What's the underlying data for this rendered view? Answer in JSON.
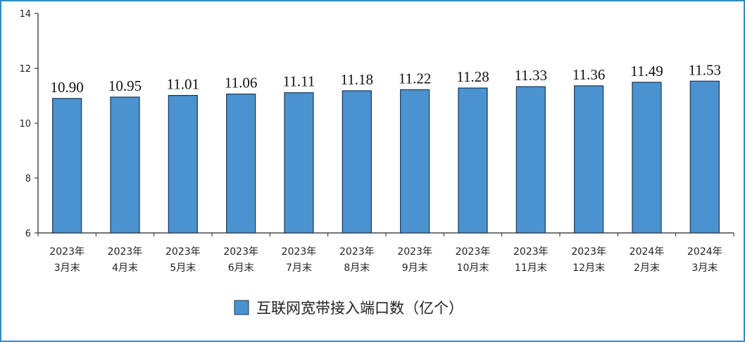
{
  "chart_data": {
    "type": "bar",
    "categories": [
      [
        "2023年",
        "3月末"
      ],
      [
        "2023年",
        "4月末"
      ],
      [
        "2023年",
        "5月末"
      ],
      [
        "2023年",
        "6月末"
      ],
      [
        "2023年",
        "7月末"
      ],
      [
        "2023年",
        "8月末"
      ],
      [
        "2023年",
        "9月末"
      ],
      [
        "2023年",
        "10月末"
      ],
      [
        "2023年",
        "11月末"
      ],
      [
        "2023年",
        "12月末"
      ],
      [
        "2024年",
        "2月末"
      ],
      [
        "2024年",
        "3月末"
      ]
    ],
    "series": [
      {
        "name": "互联网宽带接入端口数（亿个）",
        "values": [
          10.9,
          10.95,
          11.01,
          11.06,
          11.11,
          11.18,
          11.22,
          11.28,
          11.33,
          11.36,
          11.49,
          11.53
        ],
        "value_labels": [
          "10.90",
          "10.95",
          "11.01",
          "11.06",
          "11.11",
          "11.18",
          "11.22",
          "11.28",
          "11.33",
          "11.36",
          "11.49",
          "11.53"
        ]
      }
    ],
    "ylim": [
      6,
      14
    ],
    "yticks": [
      6,
      8,
      10,
      12,
      14
    ],
    "grid": false,
    "legend_position": "bottom",
    "colors": {
      "bar": "#4a93d0",
      "bar_edge": "#1f3550",
      "axis": "#222222",
      "frame": "#2f8bc4"
    }
  }
}
